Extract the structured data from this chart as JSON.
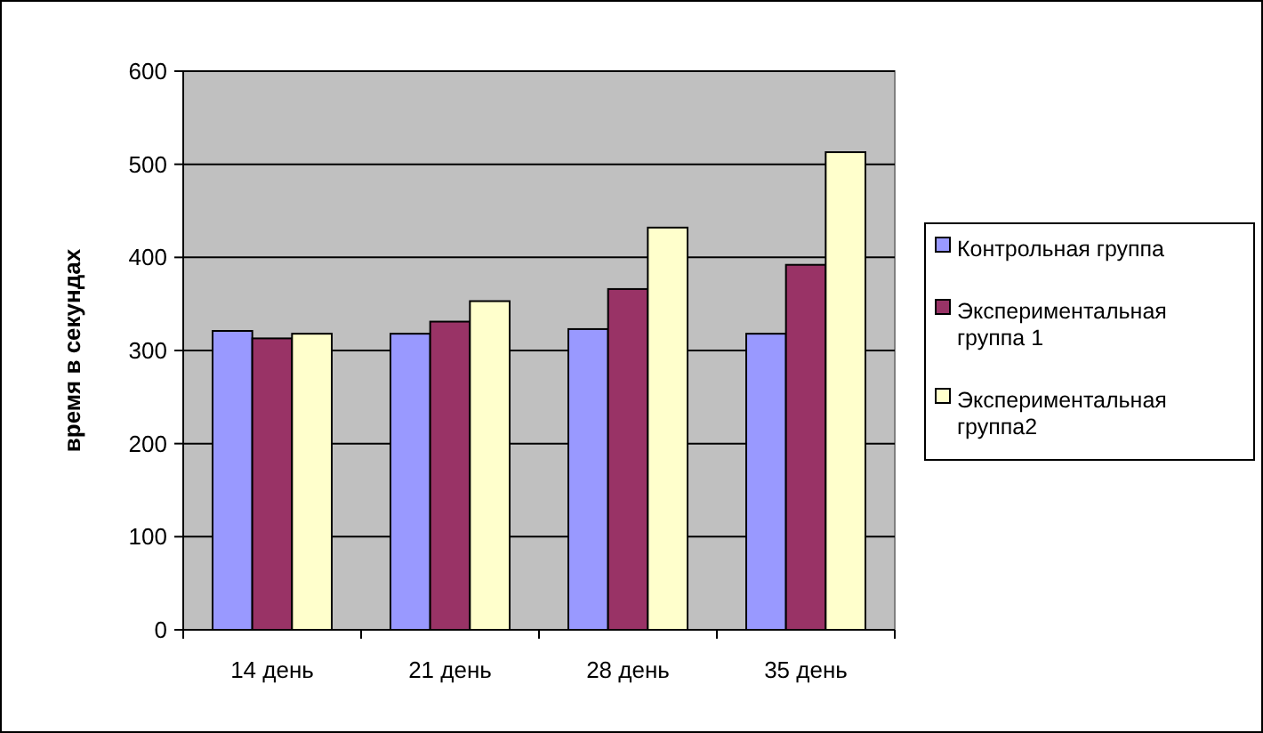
{
  "chart_data": {
    "type": "bar",
    "ylabel": "время в секундах",
    "categories": [
      "14 день",
      "21 день",
      "28 день",
      "35 день"
    ],
    "series": [
      {
        "name": "Контрольная группа",
        "color": "#9999ff",
        "values": [
          321,
          318,
          323,
          318
        ]
      },
      {
        "name": "Экспериментальная группа 1",
        "color": "#993366",
        "values": [
          313,
          331,
          366,
          392
        ]
      },
      {
        "name": "Экспериментальная группа2",
        "color": "#ffffcc",
        "values": [
          318,
          353,
          432,
          513
        ]
      }
    ],
    "ylim": [
      0,
      600
    ],
    "yticks": [
      0,
      100,
      200,
      300,
      400,
      500,
      600
    ],
    "grid": "y",
    "legend": "right"
  }
}
